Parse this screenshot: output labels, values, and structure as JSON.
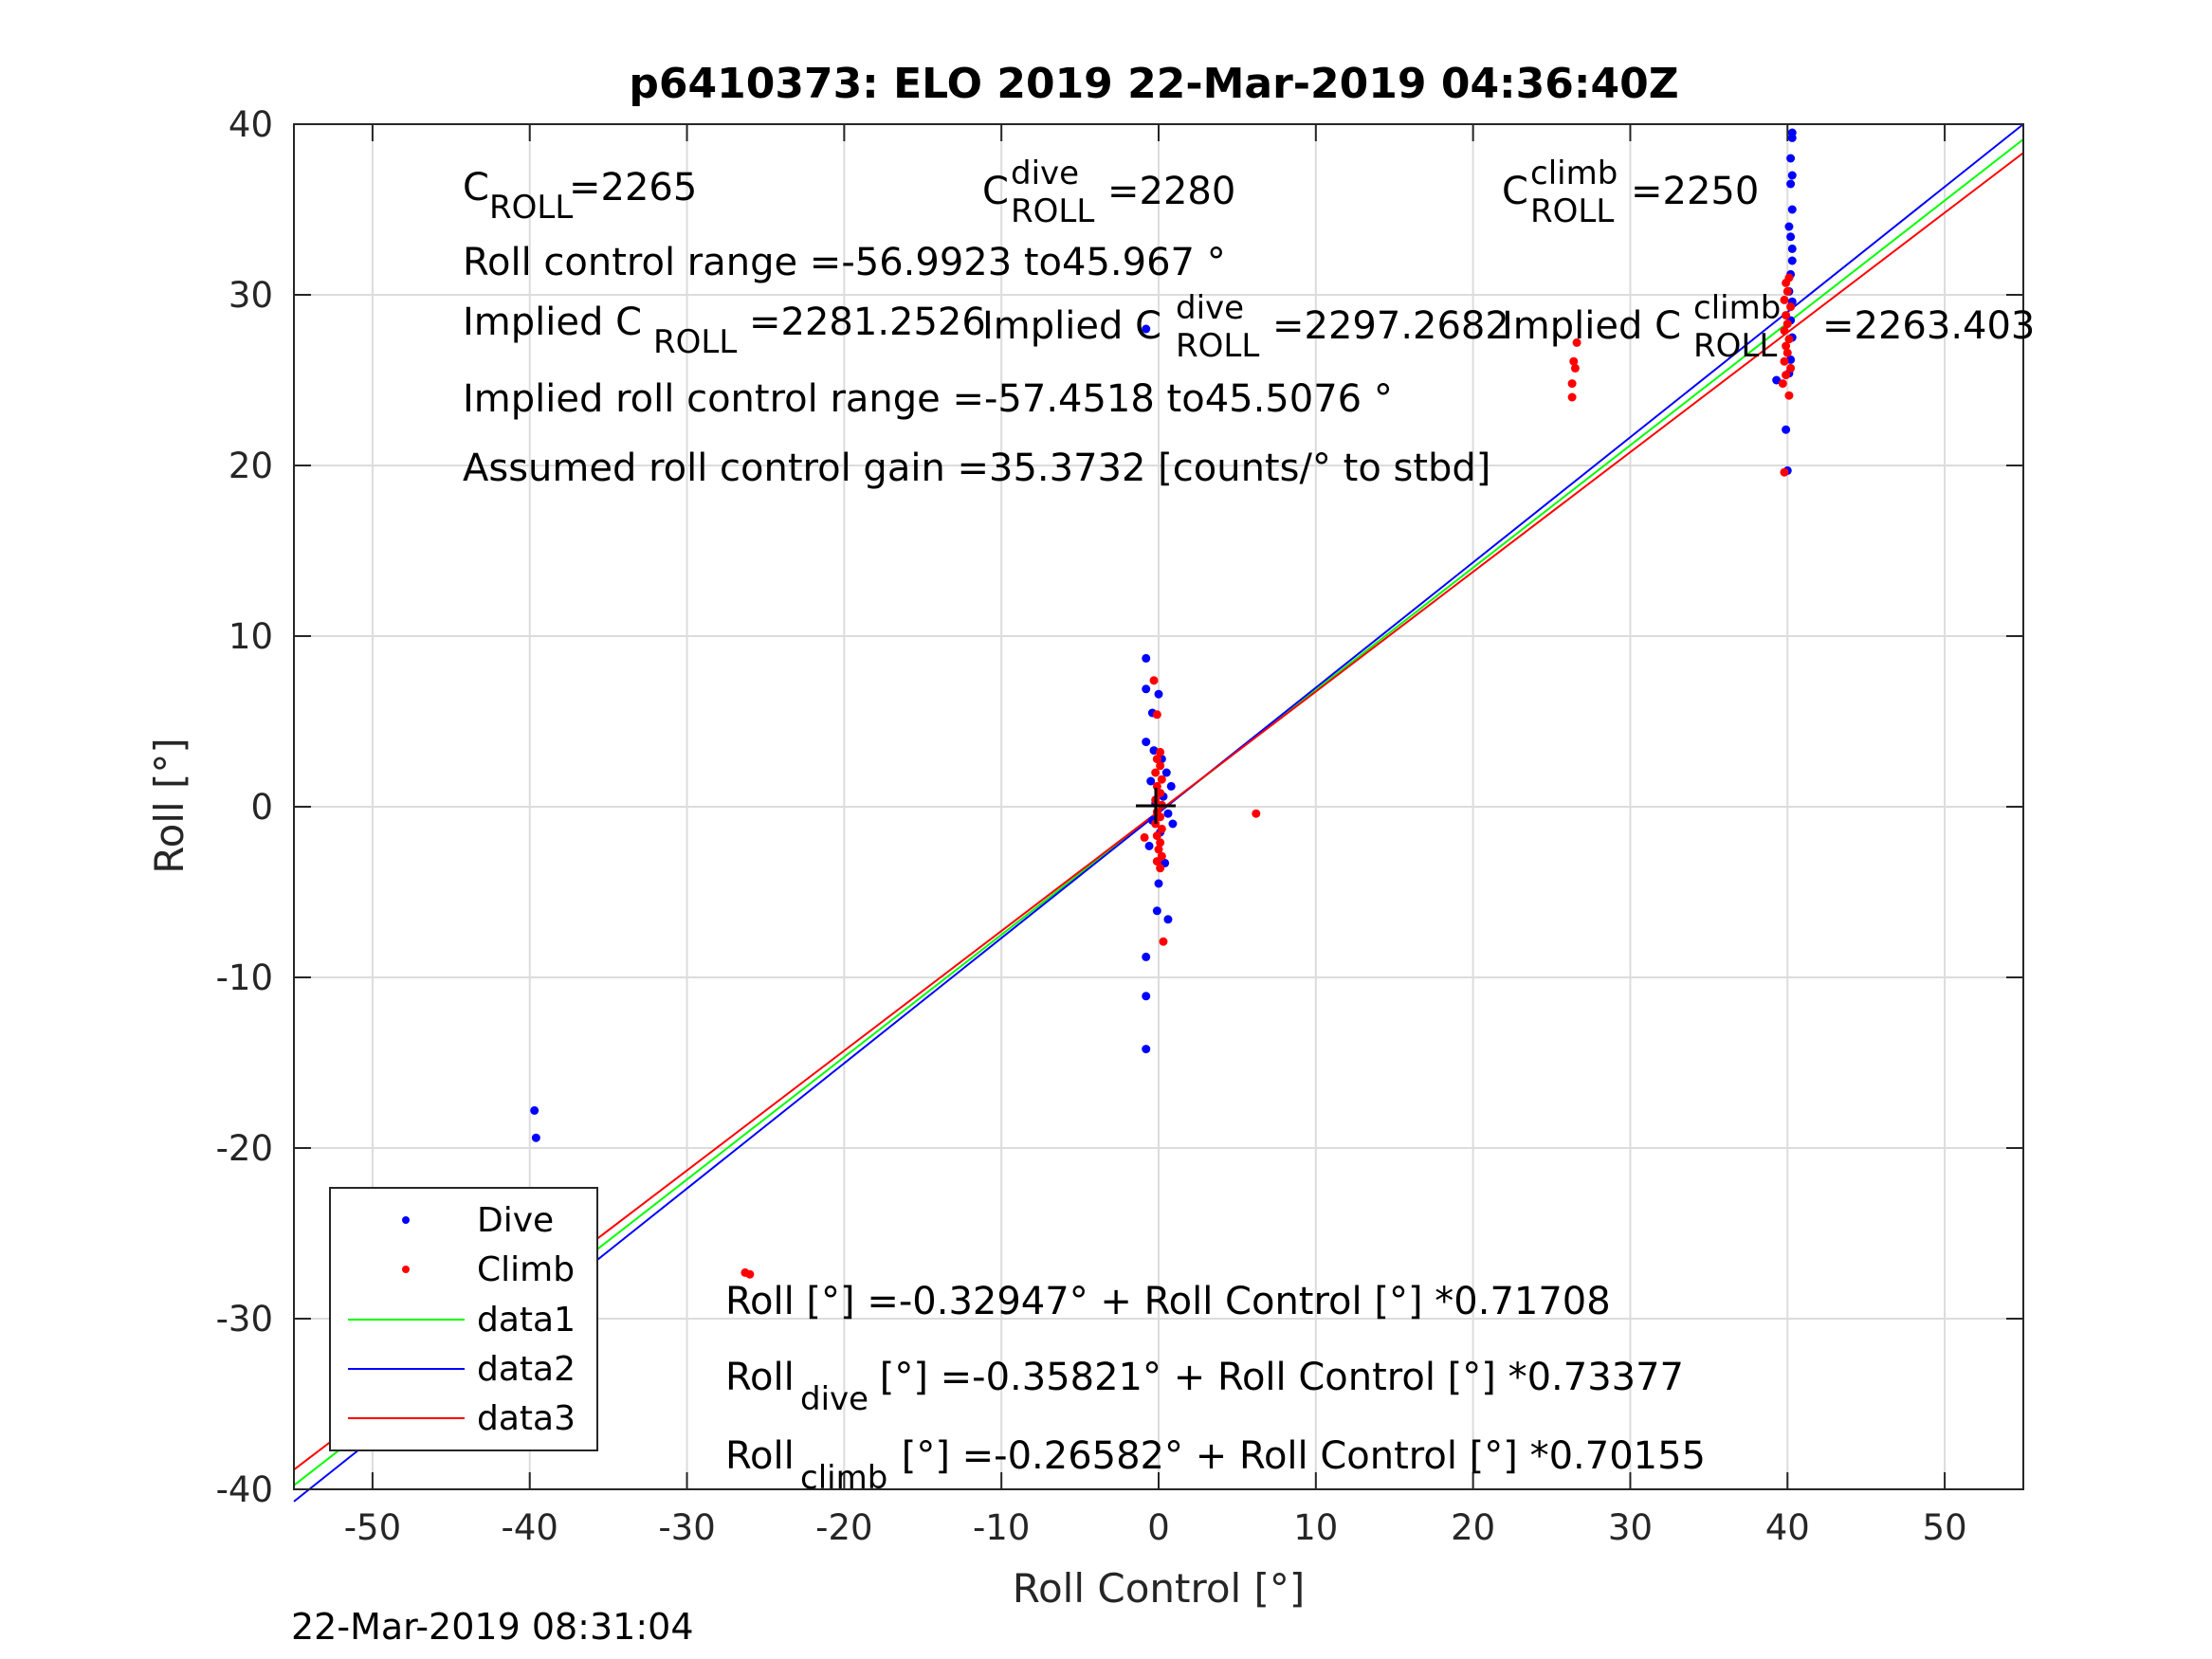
{
  "chart_data": {
    "type": "scatter",
    "title": "p6410373: ELO 2019 22-Mar-2019 04:36:40Z",
    "xlabel": "Roll Control [°]",
    "ylabel": "Roll [°]",
    "xlim": [
      -55,
      55
    ],
    "ylim": [
      -40,
      40
    ],
    "xticks": [
      -50,
      -40,
      -30,
      -20,
      -10,
      0,
      10,
      20,
      30,
      40,
      50
    ],
    "yticks": [
      -40,
      -30,
      -20,
      -10,
      0,
      10,
      20,
      30,
      40
    ],
    "grid": true,
    "legend_position": "bottom-left",
    "series": [
      {
        "name": "Dive",
        "kind": "points",
        "color": "#0000ff",
        "points": [
          [
            -39.7,
            -17.8
          ],
          [
            -39.6,
            -19.4
          ],
          [
            -39.8,
            -25.6
          ],
          [
            -39.2,
            -25.7
          ],
          [
            -39.9,
            -26.6
          ],
          [
            -39.6,
            -27.2
          ],
          [
            -39.8,
            -28.0
          ],
          [
            -39.5,
            -28.7
          ],
          [
            -39.7,
            -29.2
          ],
          [
            -39.6,
            -29.6
          ],
          [
            -0.8,
            8.7
          ],
          [
            -0.8,
            6.9
          ],
          [
            0.0,
            6.6
          ],
          [
            -0.4,
            5.5
          ],
          [
            -0.8,
            3.8
          ],
          [
            -0.3,
            3.3
          ],
          [
            0.2,
            2.8
          ],
          [
            0.5,
            2.0
          ],
          [
            -0.5,
            1.5
          ],
          [
            0.8,
            1.2
          ],
          [
            0.3,
            0.6
          ],
          [
            -0.2,
            0.2
          ],
          [
            0.6,
            -0.4
          ],
          [
            -0.4,
            -0.8
          ],
          [
            0.9,
            -1.0
          ],
          [
            0.1,
            -1.5
          ],
          [
            -0.6,
            -2.3
          ],
          [
            0.4,
            -3.3
          ],
          [
            0.0,
            -4.5
          ],
          [
            -0.1,
            -6.1
          ],
          [
            0.6,
            -6.6
          ],
          [
            -0.8,
            -8.8
          ],
          [
            -0.8,
            -11.1
          ],
          [
            -0.8,
            -14.2
          ],
          [
            -0.8,
            28.0
          ],
          [
            39.3,
            25.0
          ],
          [
            39.9,
            22.1
          ],
          [
            40.0,
            19.7
          ],
          [
            40.1,
            25.4
          ],
          [
            40.2,
            26.2
          ],
          [
            40.3,
            27.5
          ],
          [
            40.2,
            28.5
          ],
          [
            40.3,
            29.6
          ],
          [
            40.1,
            30.2
          ],
          [
            40.2,
            31.2
          ],
          [
            40.3,
            32.0
          ],
          [
            40.3,
            32.7
          ],
          [
            40.2,
            33.4
          ],
          [
            40.1,
            34.0
          ],
          [
            40.3,
            35.0
          ],
          [
            40.2,
            36.5
          ],
          [
            40.3,
            37.0
          ],
          [
            40.2,
            38.0
          ],
          [
            40.3,
            39.2
          ],
          [
            40.3,
            39.5
          ]
        ]
      },
      {
        "name": "Climb",
        "kind": "points",
        "color": "#ff0000",
        "points": [
          [
            -39.9,
            -26.7
          ],
          [
            -39.8,
            -27.1
          ],
          [
            -39.7,
            -27.4
          ],
          [
            -39.8,
            -27.8
          ],
          [
            -39.9,
            -28.2
          ],
          [
            -39.7,
            -28.6
          ],
          [
            -39.8,
            -29.0
          ],
          [
            -26.3,
            -27.3
          ],
          [
            -26.0,
            -27.4
          ],
          [
            -0.3,
            7.4
          ],
          [
            -0.1,
            5.4
          ],
          [
            0.1,
            3.2
          ],
          [
            -0.1,
            2.8
          ],
          [
            0.1,
            2.4
          ],
          [
            -0.2,
            2.0
          ],
          [
            0.2,
            1.6
          ],
          [
            -0.1,
            1.2
          ],
          [
            0.1,
            0.8
          ],
          [
            -0.2,
            0.4
          ],
          [
            0.2,
            0.1
          ],
          [
            -0.1,
            -0.3
          ],
          [
            0.1,
            -0.6
          ],
          [
            -0.2,
            -1.0
          ],
          [
            0.2,
            -1.3
          ],
          [
            -0.1,
            -1.7
          ],
          [
            0.1,
            -2.1
          ],
          [
            -0.9,
            -1.8
          ],
          [
            0.0,
            -2.5
          ],
          [
            0.2,
            -2.9
          ],
          [
            -0.1,
            -3.2
          ],
          [
            0.1,
            -3.6
          ],
          [
            0.3,
            -7.9
          ],
          [
            6.2,
            -0.4
          ],
          [
            26.3,
            24.0
          ],
          [
            26.3,
            24.8
          ],
          [
            26.5,
            25.7
          ],
          [
            26.4,
            26.1
          ],
          [
            26.6,
            27.2
          ],
          [
            39.8,
            19.6
          ],
          [
            40.1,
            24.1
          ],
          [
            39.7,
            24.8
          ],
          [
            39.9,
            25.3
          ],
          [
            40.2,
            25.7
          ],
          [
            39.8,
            26.1
          ],
          [
            40.0,
            26.6
          ],
          [
            39.9,
            27.0
          ],
          [
            40.1,
            27.4
          ],
          [
            39.8,
            27.9
          ],
          [
            40.0,
            28.3
          ],
          [
            39.9,
            28.8
          ],
          [
            40.2,
            29.3
          ],
          [
            39.8,
            29.7
          ],
          [
            40.0,
            30.2
          ],
          [
            39.9,
            30.7
          ],
          [
            40.1,
            31.0
          ]
        ]
      },
      {
        "name": "data1",
        "kind": "line",
        "color": "#00ff00",
        "intercept": -0.32947,
        "slope": 0.71708
      },
      {
        "name": "data2",
        "kind": "line",
        "color": "#0000ff",
        "intercept": -0.35821,
        "slope": 0.73377
      },
      {
        "name": "data3",
        "kind": "line",
        "color": "#ff0000",
        "intercept": -0.26582,
        "slope": 0.70155
      }
    ],
    "annotations": {
      "c_roll": {
        "main": "C",
        "sub": "ROLL",
        "value": "=2265"
      },
      "c_roll_dive": {
        "main": "C",
        "sup": "dive",
        "sub": "ROLL",
        "value": "=2280"
      },
      "c_roll_climb": {
        "main": "C",
        "sup": "climb",
        "sub": "ROLL",
        "value": "=2250"
      },
      "range": "Roll control range =-56.9923 to45.967 °",
      "implied_c_roll": {
        "prefix": "Implied C",
        "sub": "ROLL",
        "value": "=2281.2526"
      },
      "implied_c_roll_dive": {
        "prefix": "Implied C",
        "sup": "dive",
        "sub": "ROLL",
        "value": "=2297.2682"
      },
      "implied_c_roll_climb": {
        "prefix": "Implied C",
        "sup": "climb",
        "sub": "ROLL",
        "value": "=2263.403"
      },
      "implied_range": "Implied roll control range =-57.4518 to45.5076 °",
      "gain": "Assumed roll control gain =35.3732 [counts/° to stbd]",
      "fit_all": "Roll [°] =-0.32947° + Roll Control [°] *0.71708",
      "fit_dive": {
        "prefix": "Roll",
        "sub": "dive",
        "rest": " [°] =-0.35821° + Roll Control [°] *0.73377"
      },
      "fit_climb": {
        "prefix": "Roll",
        "sub": "climb",
        "rest": " [°] =-0.26582° + Roll Control [°] *0.70155"
      }
    },
    "timestamp": "22-Mar-2019 08:31:04"
  }
}
